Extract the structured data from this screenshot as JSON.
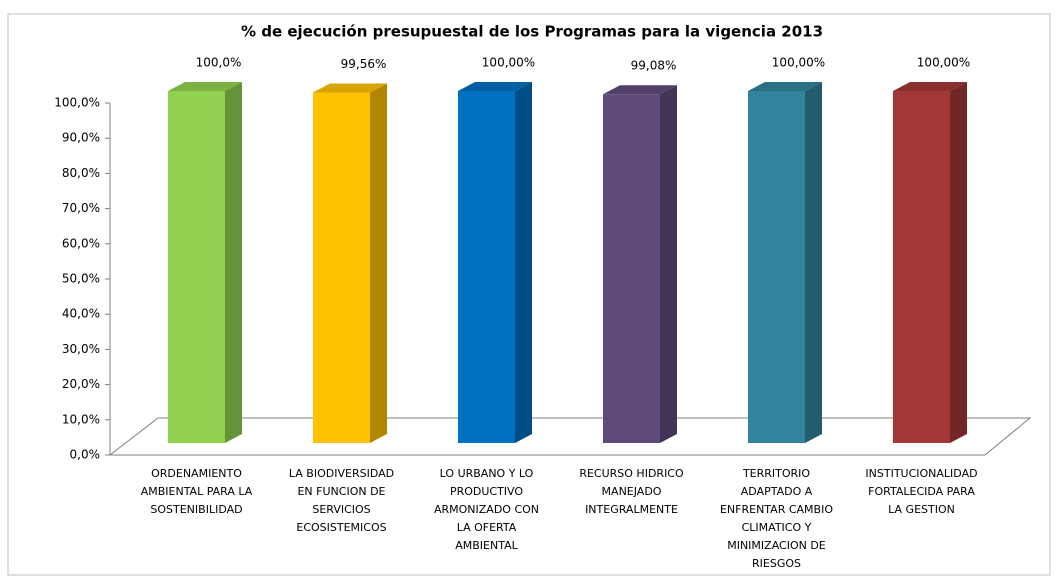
{
  "chart_data": {
    "type": "bar3d",
    "title": "% de ejecución presupuestal de los Programas para la vigencia 2013",
    "categories": [
      "ORDENAMIENTO\nAMBIENTAL PARA LA\nSOSTENIBILIDAD",
      "LA BIODIVERSIDAD\nEN FUNCION DE\nSERVICIOS\nECOSISTEMICOS",
      "LO URBANO Y LO\nPRODUCTIVO\nARMONIZADO CON\nLA OFERTA\nAMBIENTAL",
      "RECURSO HIDRICO\nMANEJADO\nINTEGRALMENTE",
      "TERRITORIO\nADAPTADO A\nENFRENTAR CAMBIO\nCLIMATICO Y\nMINIMIZACION DE\nRIESGOS",
      "INSTITUCIONALIDAD\nFORTALECIDA PARA\nLA GESTION"
    ],
    "values": [
      100,
      99.56,
      100,
      99.08,
      100,
      100
    ],
    "value_labels": [
      "100,0%",
      "99,56%",
      "100,00%",
      "99,08%",
      "100,00%",
      "100,00%"
    ],
    "colors": [
      "#92d050",
      "#ffc000",
      "#0070c0",
      "#604a7b",
      "#31849b",
      "#a33636"
    ],
    "ylim": [
      0,
      100
    ],
    "yticks": [
      {
        "value": 0,
        "label": "0,0%"
      },
      {
        "value": 10,
        "label": "10,0%"
      },
      {
        "value": 20,
        "label": "20,0%"
      },
      {
        "value": 30,
        "label": "30,0%"
      },
      {
        "value": 40,
        "label": "40,0%"
      },
      {
        "value": 50,
        "label": "50,0%"
      },
      {
        "value": 60,
        "label": "60,0%"
      },
      {
        "value": 70,
        "label": "70,0%"
      },
      {
        "value": 80,
        "label": "80,0%"
      },
      {
        "value": 90,
        "label": "90,0%"
      },
      {
        "value": 100,
        "label": "100,0%"
      }
    ]
  }
}
